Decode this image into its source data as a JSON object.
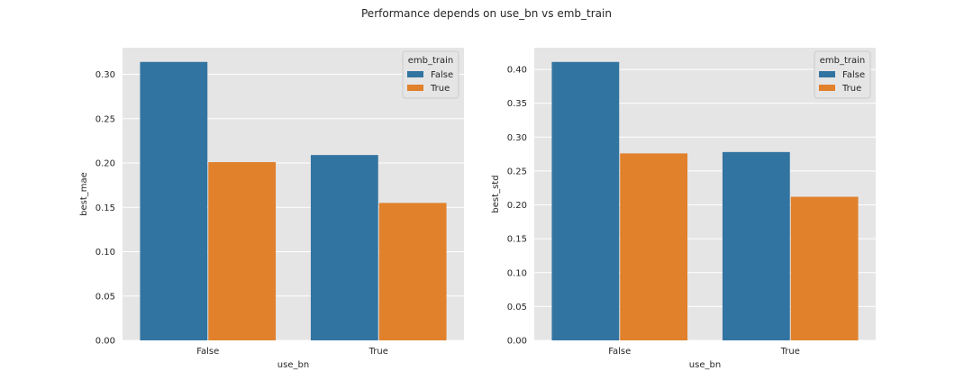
{
  "figure_title": "Performance depends on use_bn vs emb_train",
  "chart_data": [
    {
      "type": "bar",
      "categories": [
        "False",
        "True"
      ],
      "series": [
        {
          "name": "False",
          "values": [
            0.314,
            0.209
          ],
          "color": "#3274a1"
        },
        {
          "name": "True",
          "values": [
            0.201,
            0.155
          ],
          "color": "#e1812c"
        }
      ],
      "xlabel": "use_bn",
      "ylabel": "best_mae",
      "ylim": [
        0,
        0.33
      ],
      "yticks": [
        "0.00",
        "0.05",
        "0.10",
        "0.15",
        "0.20",
        "0.25",
        "0.30"
      ],
      "legend_title": "emb_train",
      "legend_position": "top-right",
      "grid": true
    },
    {
      "type": "bar",
      "categories": [
        "False",
        "True"
      ],
      "series": [
        {
          "name": "False",
          "values": [
            0.411,
            0.278
          ],
          "color": "#3274a1"
        },
        {
          "name": "True",
          "values": [
            0.276,
            0.212
          ],
          "color": "#e1812c"
        }
      ],
      "xlabel": "use_bn",
      "ylabel": "best_std",
      "ylim": [
        0,
        0.432
      ],
      "yticks": [
        "0.00",
        "0.05",
        "0.10",
        "0.15",
        "0.20",
        "0.25",
        "0.30",
        "0.35",
        "0.40"
      ],
      "legend_title": "emb_train",
      "legend_position": "top-right",
      "grid": true
    }
  ],
  "colors": {
    "axes_background": "#e5e5e5",
    "grid": "#ffffff",
    "false_series": "#3274a1",
    "true_series": "#e1812c"
  }
}
